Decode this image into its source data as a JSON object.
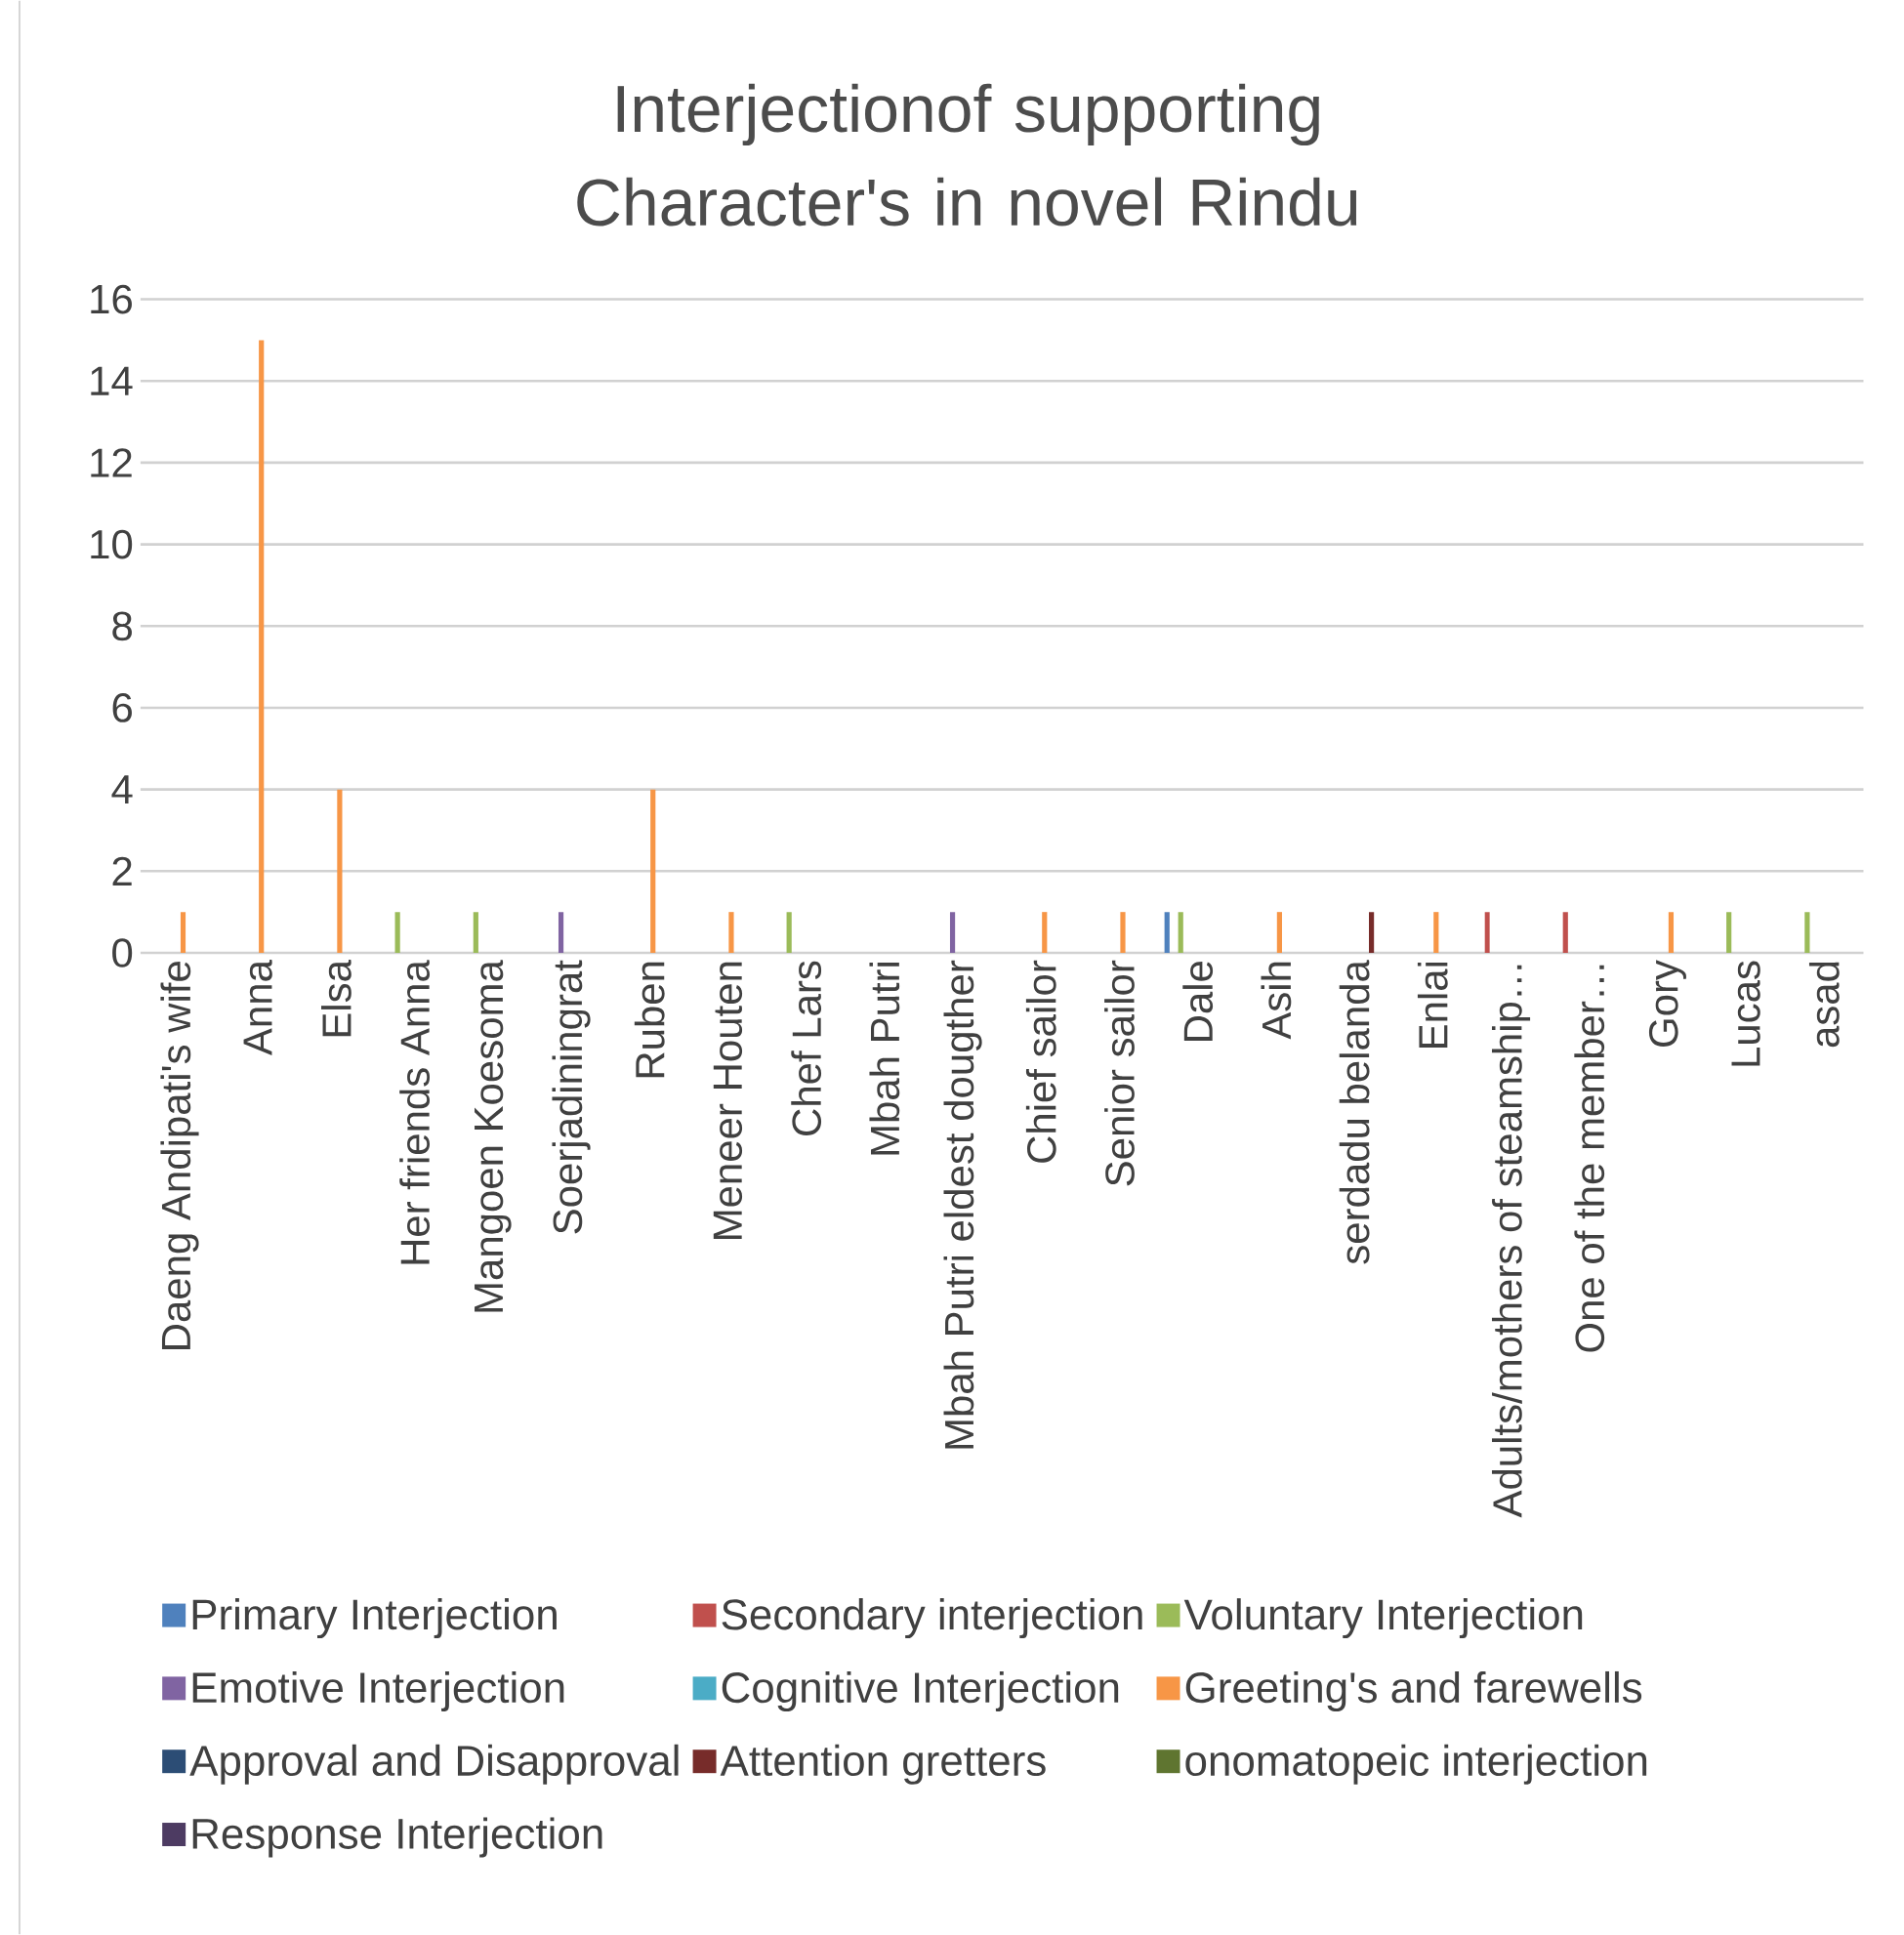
{
  "chart_data": {
    "type": "bar",
    "title": "Interjectionof  supporting Character's in novel Rindu",
    "categories": [
      "Daeng Andipati's wife",
      "Anna",
      "Elsa",
      "Her friends Anna",
      "Mangoen Koesoma",
      "Soerjadiningrat",
      "Ruben",
      "Meneer Houten",
      "Chef Lars",
      "Mbah Putri",
      "Mbah Putri eldest dougther",
      "Chief sailor",
      "Senior sailor",
      "Dale",
      "Asih",
      "serdadu belanda",
      "Enlai",
      "Adults/mothers of steamship…",
      "One of the member…",
      "Gory",
      "Lucas",
      "asad"
    ],
    "series": [
      {
        "name": "Primary Interjection",
        "color": "#4f81bd",
        "values": [
          null,
          null,
          null,
          null,
          null,
          null,
          null,
          null,
          null,
          null,
          null,
          null,
          null,
          1,
          null,
          null,
          null,
          null,
          null,
          null,
          null,
          null
        ]
      },
      {
        "name": "Secondary interjection",
        "color": "#c0504d",
        "values": [
          null,
          null,
          null,
          null,
          null,
          null,
          null,
          null,
          null,
          null,
          null,
          null,
          null,
          null,
          null,
          null,
          null,
          1,
          1,
          null,
          null,
          null
        ]
      },
      {
        "name": "Voluntary Interjection",
        "color": "#9bbb59",
        "values": [
          null,
          null,
          null,
          1,
          1,
          null,
          null,
          null,
          1,
          null,
          null,
          null,
          null,
          1,
          null,
          null,
          null,
          null,
          null,
          null,
          1,
          1
        ]
      },
      {
        "name": "Emotive Interjection",
        "color": "#8064a2",
        "values": [
          null,
          null,
          null,
          null,
          null,
          1,
          null,
          null,
          null,
          null,
          1,
          null,
          null,
          null,
          null,
          null,
          null,
          null,
          null,
          null,
          null,
          null
        ]
      },
      {
        "name": "Cognitive Interjection",
        "color": "#4bacc6",
        "values": [
          null,
          null,
          null,
          null,
          null,
          null,
          null,
          null,
          null,
          null,
          null,
          null,
          null,
          null,
          null,
          null,
          null,
          null,
          null,
          null,
          null,
          null
        ]
      },
      {
        "name": "Greeting's and farewells",
        "color": "#f79646",
        "values": [
          1,
          15,
          4,
          null,
          null,
          null,
          4,
          1,
          null,
          null,
          null,
          1,
          1,
          null,
          1,
          null,
          1,
          null,
          null,
          1,
          null,
          null
        ]
      },
      {
        "name": "Approval and Disapproval",
        "color": "#2c4d75",
        "values": [
          null,
          null,
          null,
          null,
          null,
          null,
          null,
          null,
          null,
          null,
          null,
          null,
          null,
          null,
          null,
          null,
          null,
          null,
          null,
          null,
          null,
          null
        ]
      },
      {
        "name": "Attention gretters",
        "color": "#772c2a",
        "values": [
          null,
          null,
          null,
          null,
          null,
          null,
          null,
          null,
          null,
          null,
          null,
          null,
          null,
          null,
          null,
          1,
          null,
          null,
          null,
          null,
          null,
          null
        ]
      },
      {
        "name": "onomatopeic interjection",
        "color": "#5f7530",
        "values": [
          null,
          null,
          null,
          null,
          null,
          null,
          null,
          null,
          null,
          null,
          null,
          null,
          null,
          null,
          null,
          null,
          null,
          null,
          null,
          null,
          null,
          null
        ]
      },
      {
        "name": "Response Interjection",
        "color": "#4d3b62",
        "values": [
          null,
          null,
          null,
          null,
          null,
          null,
          null,
          null,
          null,
          null,
          null,
          null,
          null,
          null,
          null,
          null,
          null,
          null,
          null,
          null,
          null,
          null
        ]
      }
    ],
    "ylim": [
      0,
      16
    ],
    "yticks": [
      0,
      2,
      4,
      6,
      8,
      10,
      12,
      14,
      16
    ],
    "grid": "y",
    "legend": "bottom"
  }
}
